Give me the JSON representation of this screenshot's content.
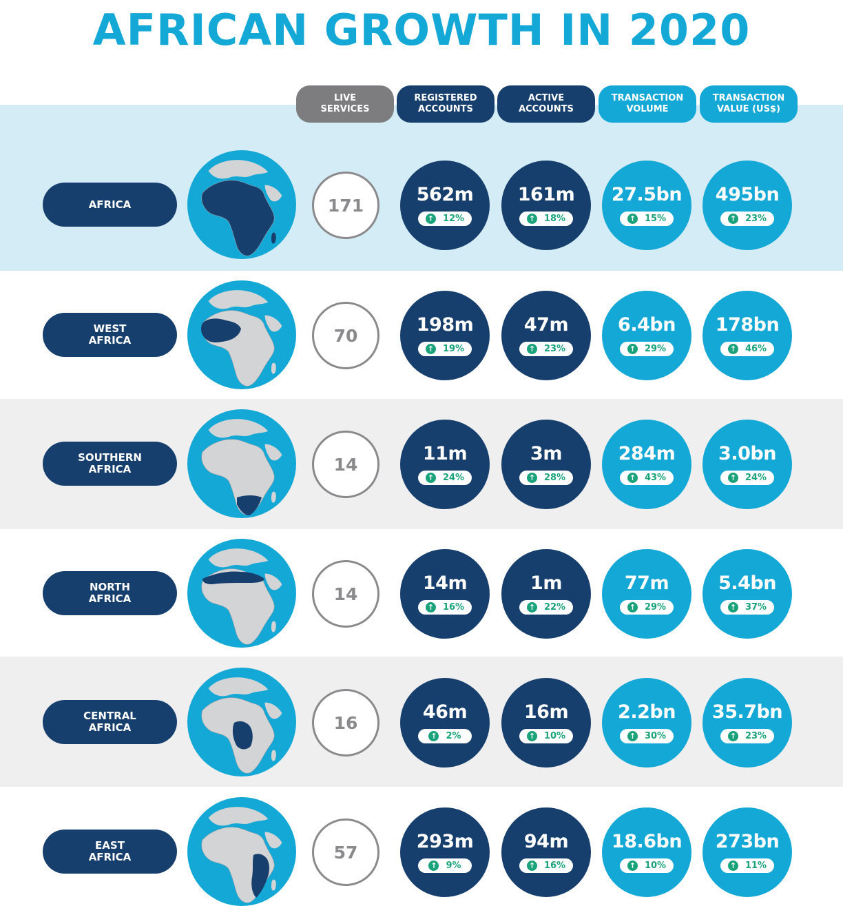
{
  "title": "AFRICAN GROWTH IN 2020",
  "headers": {
    "live_services": "LIVE\nSERVICES",
    "registered_accounts": "REGISTERED\nACCOUNTS",
    "active_accounts": "ACTIVE\nACCOUNTS",
    "transaction_volume": "TRANSACTION\nVOLUME",
    "transaction_value": "TRANSACTION\nVALUE (US$)"
  },
  "colors": {
    "navy": "#173f6e",
    "cyan": "#14a8d6",
    "grey": "#7d7d7f",
    "growth_green": "#1aa37a",
    "highlight_band": "#d4ecf5",
    "grey_band": "#efefef"
  },
  "rows": [
    {
      "region": "AFRICA",
      "live": "171",
      "registered": {
        "value": "562m",
        "growth": "12%"
      },
      "active": {
        "value": "161m",
        "growth": "18%"
      },
      "volume": {
        "value": "27.5bn",
        "growth": "15%"
      },
      "txvalue": {
        "value": "495bn",
        "growth": "23%"
      }
    },
    {
      "region": "WEST\nAFRICA",
      "live": "70",
      "registered": {
        "value": "198m",
        "growth": "19%"
      },
      "active": {
        "value": "47m",
        "growth": "23%"
      },
      "volume": {
        "value": "6.4bn",
        "growth": "29%"
      },
      "txvalue": {
        "value": "178bn",
        "growth": "46%"
      }
    },
    {
      "region": "SOUTHERN\nAFRICA",
      "live": "14",
      "registered": {
        "value": "11m",
        "growth": "24%"
      },
      "active": {
        "value": "3m",
        "growth": "28%"
      },
      "volume": {
        "value": "284m",
        "growth": "43%"
      },
      "txvalue": {
        "value": "3.0bn",
        "growth": "24%"
      }
    },
    {
      "region": "NORTH\nAFRICA",
      "live": "14",
      "registered": {
        "value": "14m",
        "growth": "16%"
      },
      "active": {
        "value": "1m",
        "growth": "22%"
      },
      "volume": {
        "value": "77m",
        "growth": "29%"
      },
      "txvalue": {
        "value": "5.4bn",
        "growth": "37%"
      }
    },
    {
      "region": "CENTRAL\nAFRICA",
      "live": "16",
      "registered": {
        "value": "46m",
        "growth": "2%"
      },
      "active": {
        "value": "16m",
        "growth": "10%"
      },
      "volume": {
        "value": "2.2bn",
        "growth": "30%"
      },
      "txvalue": {
        "value": "35.7bn",
        "growth": "23%"
      }
    },
    {
      "region": "EAST\nAFRICA",
      "live": "57",
      "registered": {
        "value": "293m",
        "growth": "9%"
      },
      "active": {
        "value": "94m",
        "growth": "16%"
      },
      "volume": {
        "value": "18.6bn",
        "growth": "10%"
      },
      "txvalue": {
        "value": "273bn",
        "growth": "11%"
      }
    }
  ]
}
